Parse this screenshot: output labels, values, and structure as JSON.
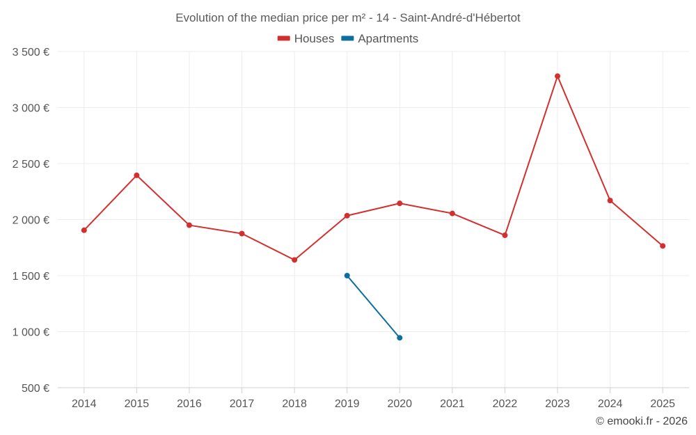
{
  "chart_data": {
    "type": "line",
    "title": "Evolution of the median price per m² - 14 - Saint-André-d'Hébertot",
    "xlabel": "",
    "ylabel": "",
    "categories": [
      "2014",
      "2015",
      "2016",
      "2017",
      "2018",
      "2019",
      "2020",
      "2021",
      "2022",
      "2023",
      "2024",
      "2025"
    ],
    "ylim": [
      500,
      3500
    ],
    "yticks": [
      500,
      1000,
      1500,
      2000,
      2500,
      3000,
      3500
    ],
    "ytick_labels": [
      "500 €",
      "1 000 €",
      "1 500 €",
      "2 000 €",
      "2 500 €",
      "3 000 €",
      "3 500 €"
    ],
    "grid": true,
    "legend_position": "top-center",
    "series": [
      {
        "name": "Houses",
        "color": "#d32f2f",
        "values": [
          1905,
          2395,
          1950,
          1875,
          1640,
          2035,
          2145,
          2055,
          1860,
          3280,
          2170,
          1765
        ]
      },
      {
        "name": "Apartments",
        "color": "#0d6ea0",
        "values": [
          null,
          null,
          null,
          null,
          null,
          1500,
          945,
          null,
          null,
          null,
          null,
          null
        ]
      }
    ]
  },
  "credit": "© emooki.fr - 2026"
}
